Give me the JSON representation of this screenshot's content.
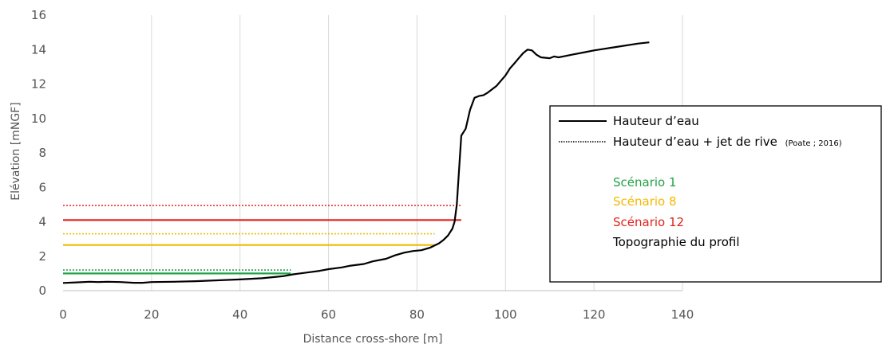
{
  "chart_data": {
    "type": "line",
    "xlabel": "Distance cross-shore [m]",
    "ylabel": "Elévation [mNGF]",
    "xlim": [
      0,
      140
    ],
    "ylim": [
      0,
      16
    ],
    "x_ticks": [
      0,
      20,
      40,
      60,
      80,
      100,
      120,
      140
    ],
    "y_ticks": [
      0,
      2,
      4,
      6,
      8,
      10,
      12,
      14,
      16
    ],
    "grid": "vertical",
    "legend_position": "right",
    "legend": {
      "line_style_solid": "Hauteur d’eau",
      "line_style_dotted": "Hauteur d’eau + jet de rive",
      "line_style_dotted_ref": "(Poate ; 2016)",
      "scenario_1": "Scénario 1",
      "scenario_8": "Scénario 8",
      "scenario_12": "Scénario 12",
      "topography": "Topographie du profil"
    },
    "series": [
      {
        "name": "Scénario 1",
        "style": "solid",
        "color": "#22a246",
        "x": [
          0,
          51.5
        ],
        "y": [
          1.0,
          1.0
        ]
      },
      {
        "name": "Scénario 1",
        "style": "dotted",
        "color": "#22a246",
        "x": [
          0,
          51.5
        ],
        "y": [
          1.2,
          1.2
        ]
      },
      {
        "name": "Scénario 8",
        "style": "solid",
        "color": "#f5b800",
        "x": [
          0,
          84
        ],
        "y": [
          2.65,
          2.65
        ]
      },
      {
        "name": "Scénario 8",
        "style": "dotted",
        "color": "#f5b800",
        "x": [
          0,
          84
        ],
        "y": [
          3.3,
          3.3
        ]
      },
      {
        "name": "Scénario 12",
        "style": "solid",
        "color": "#e2231a",
        "x": [
          0,
          90
        ],
        "y": [
          4.1,
          4.1
        ]
      },
      {
        "name": "Scénario 12",
        "style": "dotted",
        "color": "#e2231a",
        "x": [
          0,
          90
        ],
        "y": [
          4.95,
          4.95
        ]
      },
      {
        "name": "Topographie du profil",
        "style": "solid",
        "color": "#000000",
        "x": [
          0,
          3,
          6,
          8,
          10,
          13,
          16,
          18,
          20,
          25,
          30,
          35,
          40,
          45,
          50,
          52,
          55,
          58,
          60,
          63,
          65,
          68,
          70,
          73,
          75,
          77,
          79,
          81,
          83,
          85,
          86,
          87,
          88,
          88.5,
          89,
          89.5,
          90,
          91,
          92,
          93,
          94,
          95,
          96,
          98,
          100,
          101,
          102,
          103,
          104,
          105,
          106,
          107,
          108,
          110,
          111,
          112,
          113,
          115,
          118,
          120,
          125,
          130,
          132.5
        ],
        "y": [
          0.45,
          0.48,
          0.52,
          0.5,
          0.52,
          0.5,
          0.46,
          0.46,
          0.5,
          0.52,
          0.55,
          0.6,
          0.65,
          0.72,
          0.85,
          0.95,
          1.05,
          1.15,
          1.25,
          1.35,
          1.45,
          1.55,
          1.7,
          1.85,
          2.05,
          2.2,
          2.3,
          2.35,
          2.5,
          2.75,
          2.95,
          3.2,
          3.6,
          4.0,
          5.0,
          7.0,
          9.0,
          9.4,
          10.5,
          11.2,
          11.3,
          11.35,
          11.5,
          11.9,
          12.5,
          12.9,
          13.2,
          13.5,
          13.8,
          14.0,
          13.95,
          13.7,
          13.55,
          13.5,
          13.6,
          13.55,
          13.6,
          13.7,
          13.85,
          13.95,
          14.15,
          14.35,
          14.42
        ]
      }
    ]
  }
}
